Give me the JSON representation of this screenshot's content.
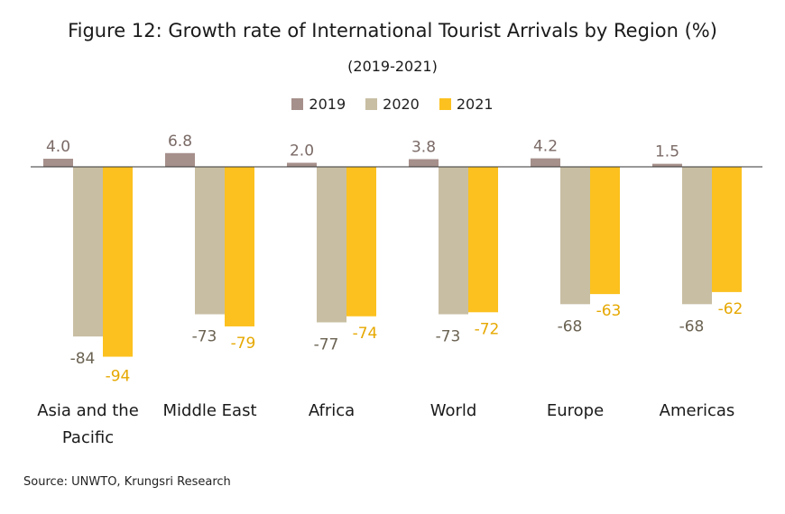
{
  "chart_data": {
    "type": "bar",
    "title": "Figure 12: Growth rate of International Tourist Arrivals by Region (%)",
    "subtitle": "(2019-2021)",
    "categories": [
      "Asia and the Pacific",
      "Middle East",
      "Africa",
      "World",
      "Europe",
      "Americas"
    ],
    "series": [
      {
        "name": "2019",
        "color": "#a6908b",
        "values": [
          4.0,
          6.8,
          2.0,
          3.8,
          4.2,
          1.5
        ],
        "labels": [
          "4.0",
          "6.8",
          "2.0",
          "3.8",
          "4.2",
          "1.5"
        ]
      },
      {
        "name": "2020",
        "color": "#c8bea3",
        "values": [
          -84,
          -73,
          -77,
          -73,
          -68,
          -68
        ],
        "labels": [
          "-84",
          "-73",
          "-77",
          "-73",
          "-68",
          "-68"
        ]
      },
      {
        "name": "2021",
        "color": "#fcc11f",
        "values": [
          -94,
          -79,
          -74,
          -72,
          -63,
          -62
        ],
        "labels": [
          "-94",
          "-79",
          "-74",
          "-72",
          "-63",
          "-62"
        ]
      }
    ],
    "legend_position": "top",
    "grid": false,
    "label_colors": {
      "2019": "#7a6a66",
      "2020": "#6b6353",
      "2021": "#e6a800"
    }
  },
  "source": "Source: UNWTO, Krungsri Research"
}
